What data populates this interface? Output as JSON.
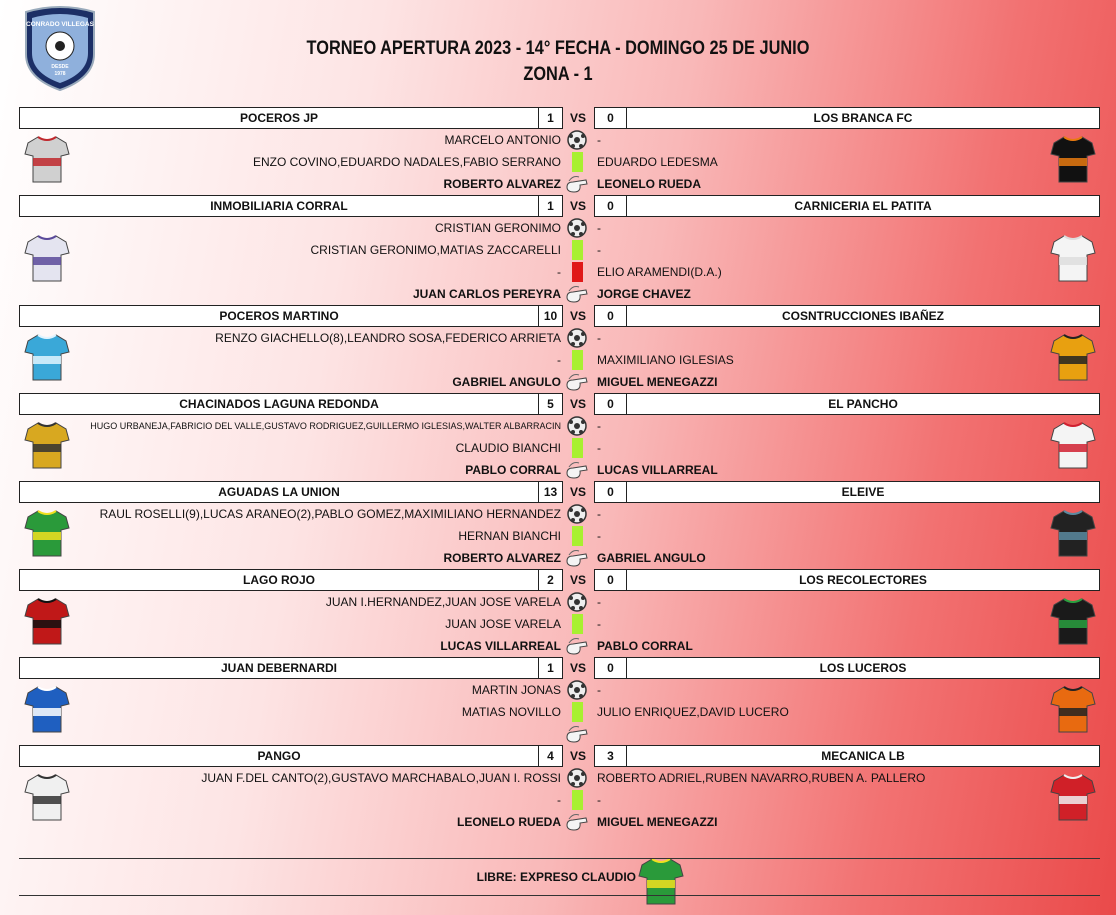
{
  "logo": {
    "name": "CONRADO VILLEGAS",
    "since": "DESDE",
    "year": "1978"
  },
  "header": {
    "title": "TORNEO APERTURA 2023 - 14° FECHA - DOMINGO 25 DE JUNIO",
    "subtitle": "ZONA - 1"
  },
  "vs_label": "VS",
  "matches": [
    {
      "home": "POCEROS JP",
      "home_score": 1,
      "away_score": 0,
      "away": "LOS BRANCA FC",
      "home_shirt": [
        "#d0d0d0",
        "#c0282d"
      ],
      "away_shirt": [
        "#111111",
        "#e87a10"
      ],
      "rows": [
        {
          "icon": "ball",
          "left": "MARCELO ANTONIO",
          "right": "-"
        },
        {
          "icon": "yellow",
          "left": "ENZO COVINO,EDUARDO NADALES,FABIO SERRANO",
          "right": "EDUARDO LEDESMA"
        },
        {
          "icon": "whistle",
          "left": "ROBERTO ALVAREZ",
          "right": "LEONELO RUEDA"
        }
      ]
    },
    {
      "home": "INMOBILIARIA CORRAL",
      "home_score": 1,
      "away_score": 0,
      "away": "CARNICERIA EL PATITA",
      "home_shirt": [
        "#e4e4f0",
        "#5a4a9a"
      ],
      "away_shirt": [
        "#f4f4f4",
        "#dddddd"
      ],
      "rows": [
        {
          "icon": "ball",
          "left": "CRISTIAN GERONIMO",
          "right": "-"
        },
        {
          "icon": "yellow",
          "left": "CRISTIAN GERONIMO,MATIAS ZACCARELLI",
          "right": "-"
        },
        {
          "icon": "red",
          "left": "-",
          "right": "ELIO ARAMENDI(D.A.)"
        },
        {
          "icon": "whistle",
          "left": "JUAN CARLOS PEREYRA",
          "right": "JORGE CHAVEZ"
        }
      ]
    },
    {
      "home": "POCEROS MARTINO",
      "home_score": 10,
      "away_score": 0,
      "away": "COSNTRUCCIONES IBAÑEZ",
      "home_shirt": [
        "#3aa8d8",
        "#e0f4ff"
      ],
      "away_shirt": [
        "#e8a010",
        "#222222"
      ],
      "rows": [
        {
          "icon": "ball",
          "left": "RENZO GIACHELLO(8),LEANDRO SOSA,FEDERICO ARRIETA",
          "right": "-"
        },
        {
          "icon": "yellow",
          "left": "-",
          "right": "MAXIMILIANO IGLESIAS"
        },
        {
          "icon": "whistle",
          "left": "GABRIEL ANGULO",
          "right": "MIGUEL MENEGAZZI"
        }
      ]
    },
    {
      "home": "CHACINADOS LAGUNA REDONDA",
      "home_score": 5,
      "away_score": 0,
      "away": "EL PANCHO",
      "home_shirt": [
        "#d8a820",
        "#333333"
      ],
      "away_shirt": [
        "#f4f4f4",
        "#d02030"
      ],
      "rows": [
        {
          "icon": "ball",
          "left": "HUGO URBANEJA,FABRICIO DEL VALLE,GUSTAVO RODRIGUEZ,GUILLERMO IGLESIAS,WALTER ALBARRACIN",
          "right": "-"
        },
        {
          "icon": "yellow",
          "left": "CLAUDIO BIANCHI",
          "right": "-"
        },
        {
          "icon": "whistle",
          "left": "PABLO CORRAL",
          "right": "LUCAS VILLARREAL"
        }
      ]
    },
    {
      "home": "AGUADAS LA UNION",
      "home_score": 13,
      "away_score": 0,
      "away": "ELEIVE",
      "home_shirt": [
        "#2a9a3a",
        "#f0e020"
      ],
      "away_shirt": [
        "#222222",
        "#5a8aa0"
      ],
      "rows": [
        {
          "icon": "ball",
          "left": "RAUL ROSELLI(9),LUCAS ARANEO(2),PABLO GOMEZ,MAXIMILIANO HERNANDEZ",
          "right": "-"
        },
        {
          "icon": "yellow",
          "left": "HERNAN BIANCHI",
          "right": "-"
        },
        {
          "icon": "whistle",
          "left": "ROBERTO ALVAREZ",
          "right": "GABRIEL ANGULO"
        }
      ]
    },
    {
      "home": "LAGO ROJO",
      "home_score": 2,
      "away_score": 0,
      "away": "LOS RECOLECTORES",
      "home_shirt": [
        "#c01818",
        "#111111"
      ],
      "away_shirt": [
        "#1a1a1a",
        "#2aa040"
      ],
      "rows": [
        {
          "icon": "ball",
          "left": "JUAN I.HERNANDEZ,JUAN JOSE VARELA",
          "right": "-"
        },
        {
          "icon": "yellow",
          "left": "JUAN JOSE VARELA",
          "right": "-"
        },
        {
          "icon": "whistle",
          "left": "LUCAS VILLARREAL",
          "right": "PABLO CORRAL"
        }
      ]
    },
    {
      "home": "JUAN DEBERNARDI",
      "home_score": 1,
      "away_score": 0,
      "away": "LOS LUCEROS",
      "home_shirt": [
        "#1f5fc0",
        "#ffffff"
      ],
      "away_shirt": [
        "#e86a10",
        "#222222"
      ],
      "rows": [
        {
          "icon": "ball",
          "left": "MARTIN JONAS",
          "right": "-"
        },
        {
          "icon": "yellow",
          "left": "MATIAS NOVILLO",
          "right": "JULIO ENRIQUEZ,DAVID LUCERO"
        },
        {
          "icon": "whistle"
        }
      ]
    },
    {
      "home": "PANGO",
      "home_score": 4,
      "away_score": 3,
      "away": "MECANICA LB",
      "home_shirt": [
        "#f0f0f0",
        "#333333"
      ],
      "away_shirt": [
        "#d02028",
        "#f0f0f0"
      ],
      "rows": [
        {
          "icon": "ball",
          "left": "JUAN F.DEL CANTO(2),GUSTAVO MARCHABALO,JUAN I. ROSSI",
          "right": "ROBERTO ADRIEL,RUBEN NAVARRO,RUBEN A. PALLERO"
        },
        {
          "icon": "yellow",
          "left": "-",
          "right": "-"
        },
        {
          "icon": "whistle",
          "left": "LEONELO RUEDA",
          "right": "MIGUEL MENEGAZZI"
        }
      ]
    }
  ],
  "footer": {
    "text": "LIBRE: EXPRESO CLAUDIO",
    "shirt": [
      "#2a9a3a",
      "#f0e020"
    ]
  }
}
